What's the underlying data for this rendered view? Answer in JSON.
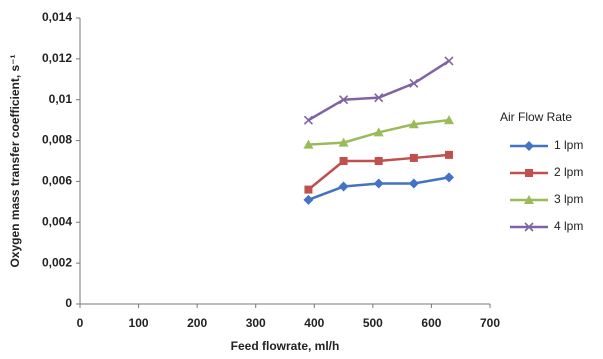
{
  "chart_data": {
    "type": "line",
    "xlabel": "Feed flowrate, ml/h",
    "ylabel": "Oxygen mass transfer coefficient, s⁻¹",
    "legend_title": "Air Flow Rate",
    "legend": "right",
    "grid": false,
    "x": [
      390,
      450,
      510,
      570,
      630
    ],
    "xlim": [
      0,
      700
    ],
    "xticks": [
      0,
      100,
      200,
      300,
      400,
      500,
      600,
      700
    ],
    "ylim": [
      0,
      0.014
    ],
    "yticks": [
      0,
      {
        "value": 0.002,
        "label": "0,002"
      },
      {
        "value": 0.004,
        "label": "0,004"
      },
      {
        "value": 0.006,
        "label": "0,006"
      },
      {
        "value": 0.008,
        "label": "0,008"
      },
      {
        "value": 0.01,
        "label": "0,01"
      },
      {
        "value": 0.012,
        "label": "0,012"
      },
      {
        "value": 0.014,
        "label": "0,014"
      }
    ],
    "series": [
      {
        "name": "1 lpm",
        "color": "#4472c4",
        "marker": "diamond",
        "values": [
          0.0051,
          0.00575,
          0.0059,
          0.0059,
          0.0062
        ]
      },
      {
        "name": "2 lpm",
        "color": "#c0504d",
        "marker": "square",
        "values": [
          0.0056,
          0.007,
          0.007,
          0.00715,
          0.0073
        ]
      },
      {
        "name": "3 lpm",
        "color": "#9bbb59",
        "marker": "triangle",
        "values": [
          0.0078,
          0.0079,
          0.0084,
          0.0088,
          0.009
        ]
      },
      {
        "name": "4 lpm",
        "color": "#8064a2",
        "marker": "x",
        "values": [
          0.009,
          0.01,
          0.0101,
          0.0108,
          0.0119
        ]
      }
    ]
  }
}
